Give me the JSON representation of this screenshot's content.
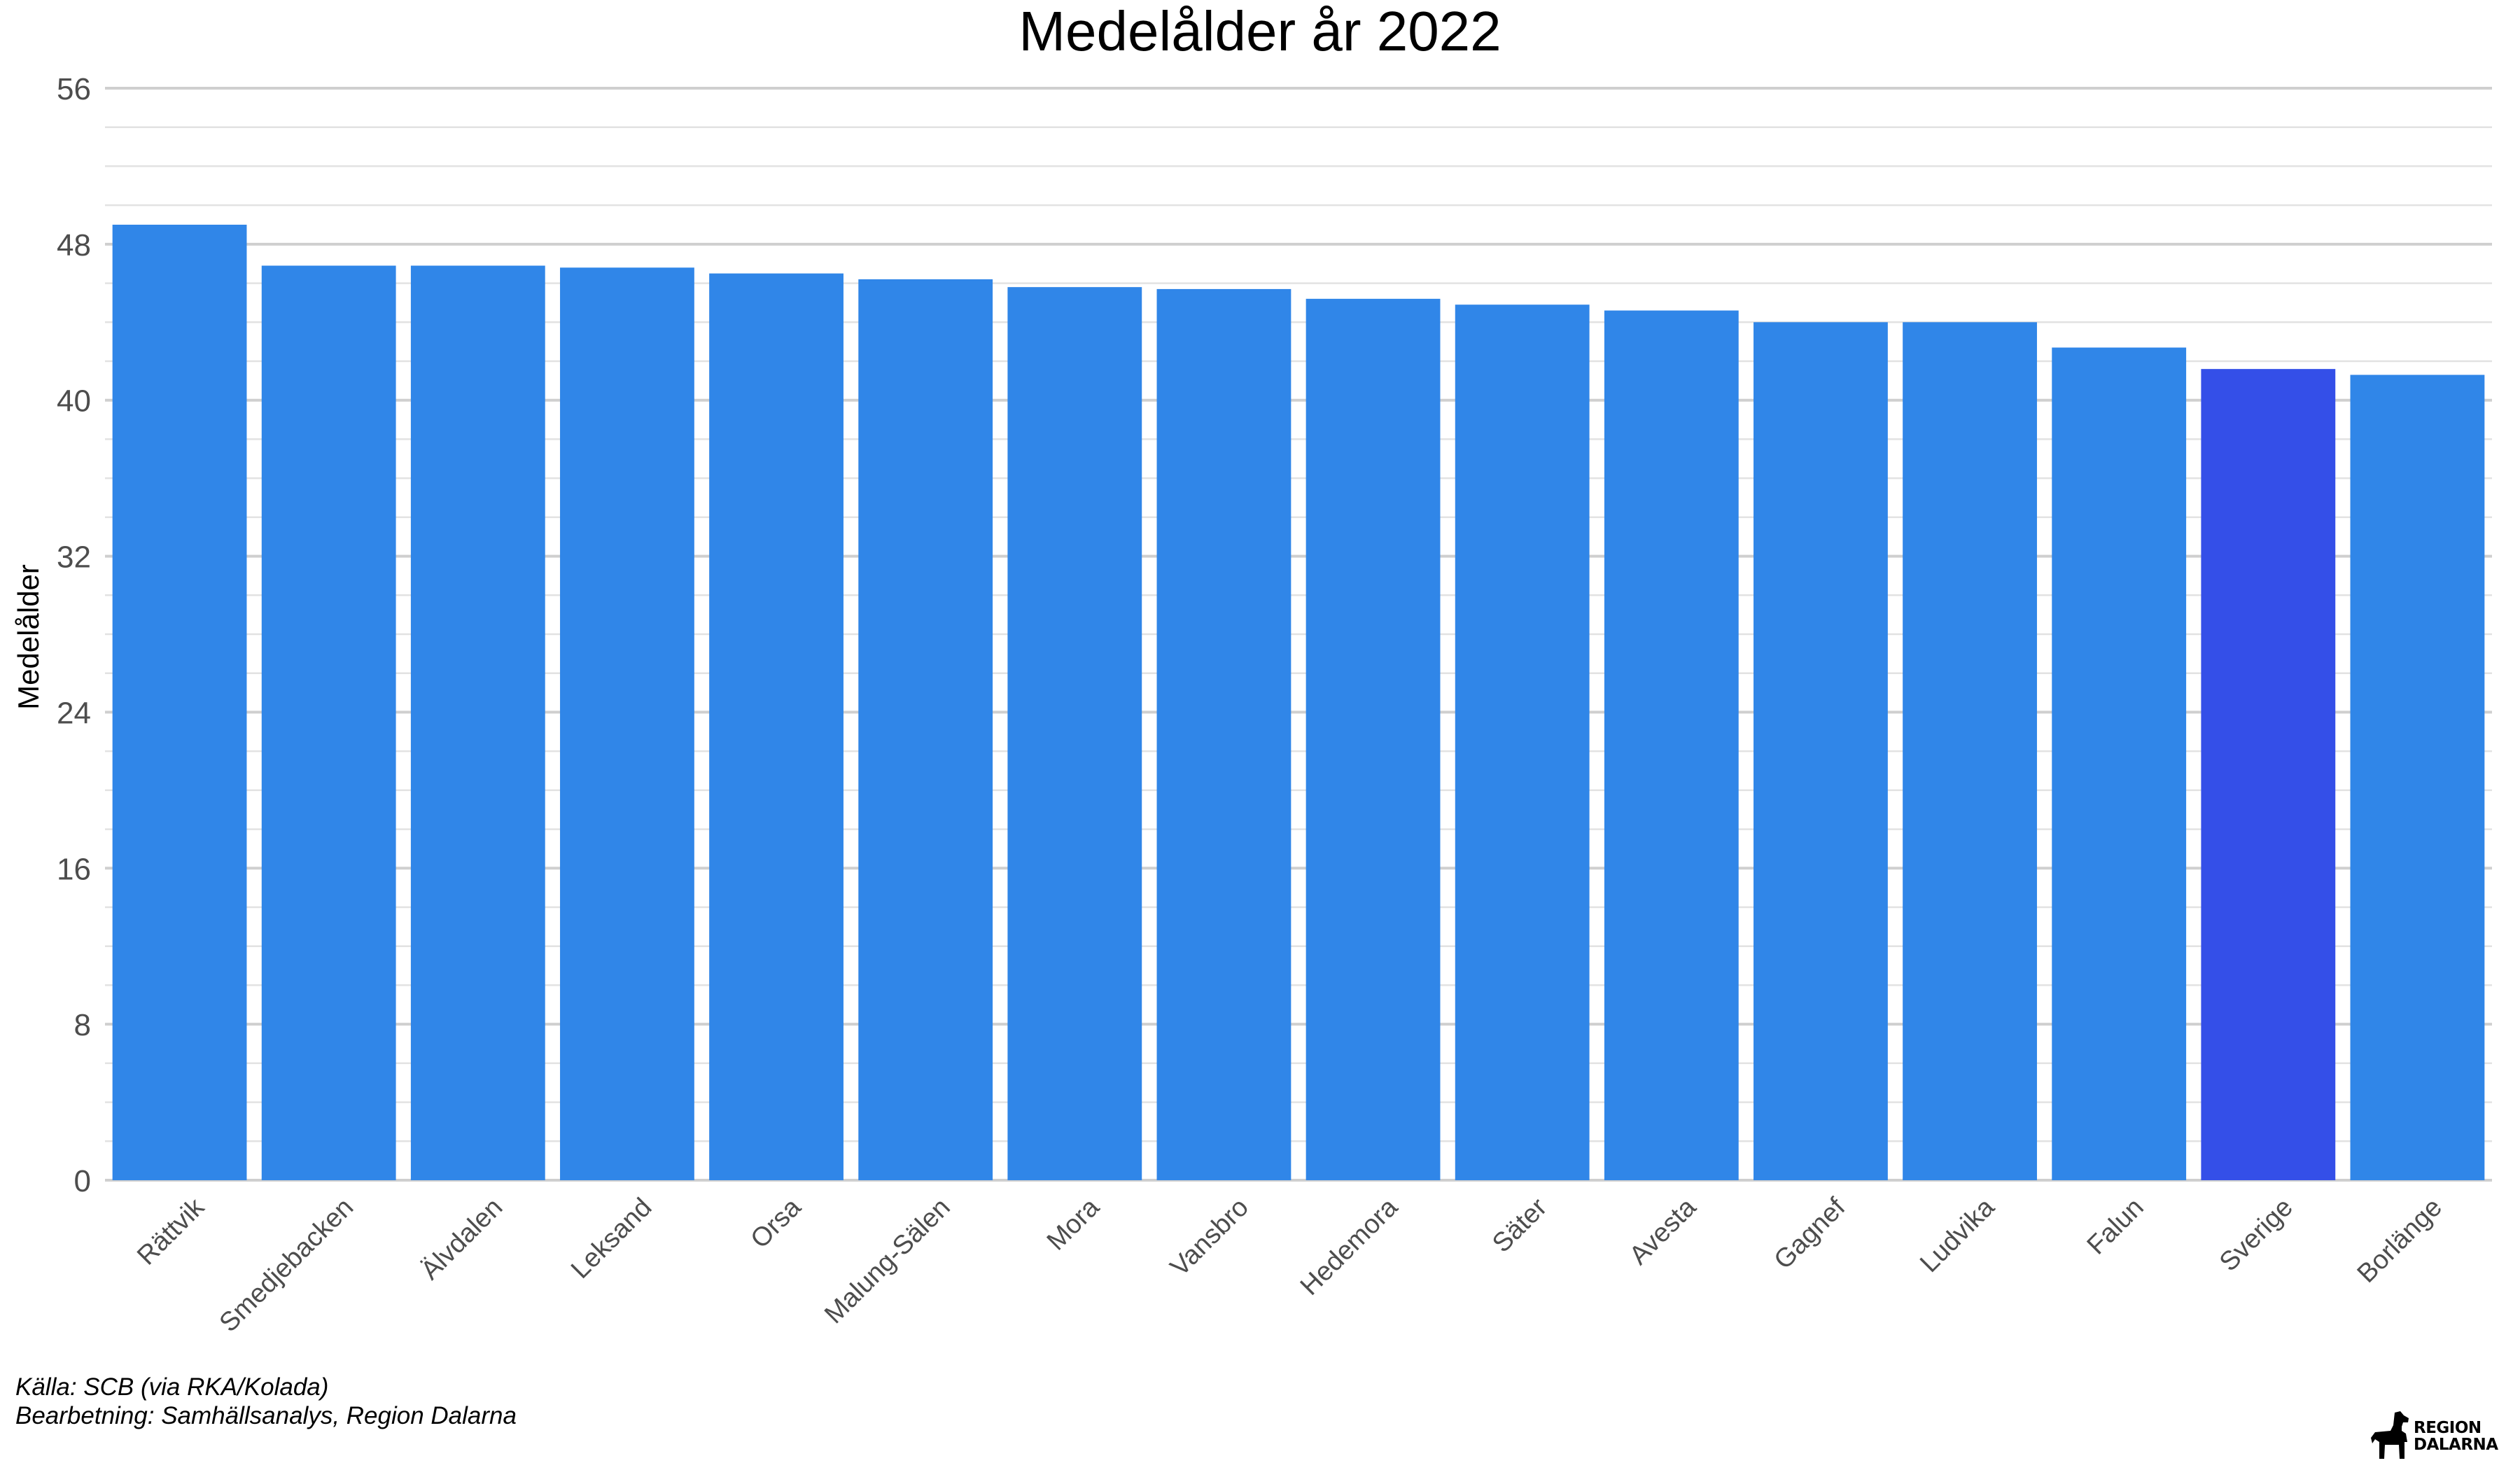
{
  "chart_data": {
    "type": "bar",
    "title": "Medelålder år 2022",
    "xlabel": "",
    "ylabel": "Medelålder",
    "ylim": [
      0,
      56
    ],
    "yticks": [
      0,
      8,
      16,
      24,
      32,
      40,
      48,
      56
    ],
    "grid": true,
    "categories": [
      "Rättvik",
      "Smedjebacken",
      "Älvdalen",
      "Leksand",
      "Orsa",
      "Malung-Sälen",
      "Mora",
      "Vansbro",
      "Hedemora",
      "Säter",
      "Avesta",
      "Gagnef",
      "Ludvika",
      "Falun",
      "Sverige",
      "Borlänge"
    ],
    "values": [
      49.0,
      46.9,
      46.9,
      46.8,
      46.5,
      46.2,
      45.8,
      45.7,
      45.2,
      44.9,
      44.6,
      44.0,
      44.0,
      42.7,
      41.6,
      41.3
    ],
    "colors": {
      "default": "#3086E8",
      "highlight": "#344FE8",
      "highlight_category": "Sverige",
      "grid": "#d9d9d9",
      "background": "#ffffff"
    }
  },
  "caption": {
    "line1": "Källa: SCB (via RKA/Kolada)",
    "line2": "Bearbetning: Samhällsanalys, Region Dalarna"
  },
  "logo": {
    "line1": "REGION",
    "line2": "DALARNA",
    "icon": "dala-horse-icon"
  }
}
